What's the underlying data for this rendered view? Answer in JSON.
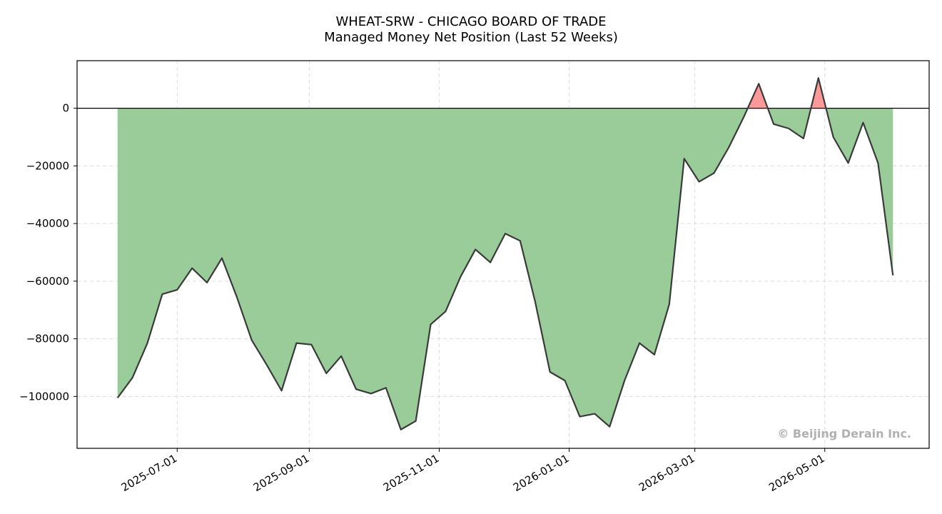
{
  "chart_data": {
    "type": "area",
    "title": "WHEAT-SRW - CHICAGO BOARD OF TRADE",
    "subtitle": "Managed Money Net Position (Last 52 Weeks)",
    "xlabel": "",
    "ylabel": "",
    "x_ticks": [
      "2025-07-01",
      "2025-09-01",
      "2025-11-01",
      "2026-01-01",
      "2026-03-01",
      "2026-05-01"
    ],
    "y_ticks": [
      0,
      -20000,
      -40000,
      -60000,
      -80000,
      -100000
    ],
    "ylim": [
      -118000,
      16500
    ],
    "xlim": [
      "2025-05-15",
      "2026-06-19"
    ],
    "grid": true,
    "fill_colors": {
      "negative": "#99cc99",
      "positive": "#ff9999"
    },
    "line_color": "#3a3a3a",
    "watermark": "© Beijing Derain Inc.",
    "series": [
      {
        "x": [
          "2025-06-03",
          "2025-06-10",
          "2025-06-17",
          "2025-06-24",
          "2025-07-01",
          "2025-07-08",
          "2025-07-15",
          "2025-07-22",
          "2025-07-29",
          "2025-08-05",
          "2025-08-12",
          "2025-08-19",
          "2025-08-26",
          "2025-09-02",
          "2025-09-09",
          "2025-09-16",
          "2025-09-23",
          "2025-09-30",
          "2025-10-07",
          "2025-10-14",
          "2025-10-21",
          "2025-10-28",
          "2025-11-04",
          "2025-11-11",
          "2025-11-18",
          "2025-11-25",
          "2025-12-02",
          "2025-12-09",
          "2025-12-16",
          "2025-12-23",
          "2025-12-30",
          "2026-01-06",
          "2026-01-13",
          "2026-01-20",
          "2026-01-27",
          "2026-02-03",
          "2026-02-10",
          "2026-02-17",
          "2026-02-24",
          "2026-03-03",
          "2026-03-10",
          "2026-03-17",
          "2026-03-24",
          "2026-03-31",
          "2026-04-07",
          "2026-04-14",
          "2026-04-21",
          "2026-04-28",
          "2026-05-05",
          "2026-05-12",
          "2026-05-19",
          "2026-05-26",
          "2026-06-02"
        ],
        "values": [
          -100500,
          -93500,
          -81500,
          -64500,
          -63000,
          -55500,
          -60500,
          -52000,
          -65500,
          -80500,
          -89000,
          -98000,
          -81500,
          -82000,
          -92000,
          -86000,
          -97500,
          -99000,
          -97000,
          -111500,
          -108500,
          -75000,
          -70500,
          -58500,
          -49000,
          -53500,
          -43500,
          -46000,
          -67000,
          -91500,
          -94500,
          -107000,
          -106000,
          -110500,
          -94500,
          -81500,
          -85500,
          -68000,
          -17500,
          -25500,
          -22500,
          -13500,
          -3000,
          8500,
          -5500,
          -7000,
          -10500,
          10500,
          -10000,
          -19000,
          -5000,
          -19000,
          -58000
        ]
      }
    ]
  }
}
